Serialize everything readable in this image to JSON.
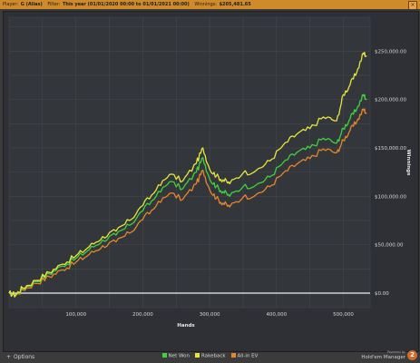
{
  "header": {
    "player_label": "Player:",
    "player_value": "G (Alias)",
    "filter_label": "Filter:",
    "filter_value": "This year (01/01/2020 00:00 to 01/01/2021 00:00)",
    "winnings_label": "Winnings:",
    "winnings_value": "$205,481.65",
    "close_icon": "×"
  },
  "footer": {
    "options_label": "Options",
    "brand_small": "Powered by",
    "brand_name": "Hold'em Manager",
    "brand_logo": "2"
  },
  "chart_data": {
    "type": "line",
    "xlabel": "Hands",
    "ylabel": "Winnings",
    "x_ticks": [
      "100,000",
      "200,000",
      "300,000",
      "400,000",
      "500,000"
    ],
    "y_ticks": [
      "$0.00",
      "$50,000.00",
      "$100,000.00",
      "$150,000.00",
      "$200,000.00",
      "$250,000.00"
    ],
    "xlim": [
      0,
      540000
    ],
    "ylim": [
      -15000,
      285000
    ],
    "grid": true,
    "legend_position": "bottom",
    "x": [
      0,
      10000,
      20000,
      40000,
      60000,
      80000,
      100000,
      120000,
      140000,
      160000,
      180000,
      200000,
      220000,
      240000,
      260000,
      280000,
      290000,
      300000,
      310000,
      320000,
      330000,
      350000,
      370000,
      390000,
      410000,
      430000,
      450000,
      470000,
      490000,
      500000,
      510000,
      520000,
      530000,
      535000
    ],
    "series": [
      {
        "name": "Net Won",
        "color": "#3fd23f",
        "values": [
          0,
          -2000,
          5000,
          12000,
          20000,
          28000,
          36000,
          45000,
          55000,
          60000,
          70000,
          85000,
          100000,
          115000,
          108000,
          125000,
          140000,
          118000,
          110000,
          105000,
          100000,
          110000,
          112000,
          120000,
          135000,
          145000,
          150000,
          160000,
          155000,
          170000,
          180000,
          190000,
          205000,
          200000
        ]
      },
      {
        "name": "Rakeback",
        "color": "#e6e63c",
        "values": [
          0,
          -1500,
          5500,
          13000,
          21500,
          30000,
          38500,
          48000,
          58500,
          64000,
          75000,
          90500,
          106500,
          122500,
          116000,
          134000,
          150000,
          128000,
          121000,
          117000,
          113000,
          124000,
          127000,
          136500,
          153000,
          164000,
          170000,
          182000,
          178000,
          205000,
          215000,
          228000,
          248000,
          245000
        ]
      },
      {
        "name": "All-in EV",
        "color": "#e8862a",
        "values": [
          0,
          -2500,
          3500,
          10000,
          17000,
          24000,
          32000,
          40000,
          49000,
          53000,
          62000,
          76000,
          90000,
          103000,
          97000,
          113000,
          127000,
          107000,
          98000,
          93000,
          89000,
          99000,
          102000,
          110000,
          124000,
          133000,
          139000,
          149000,
          145000,
          158000,
          168000,
          177000,
          190000,
          186000
        ]
      }
    ]
  }
}
